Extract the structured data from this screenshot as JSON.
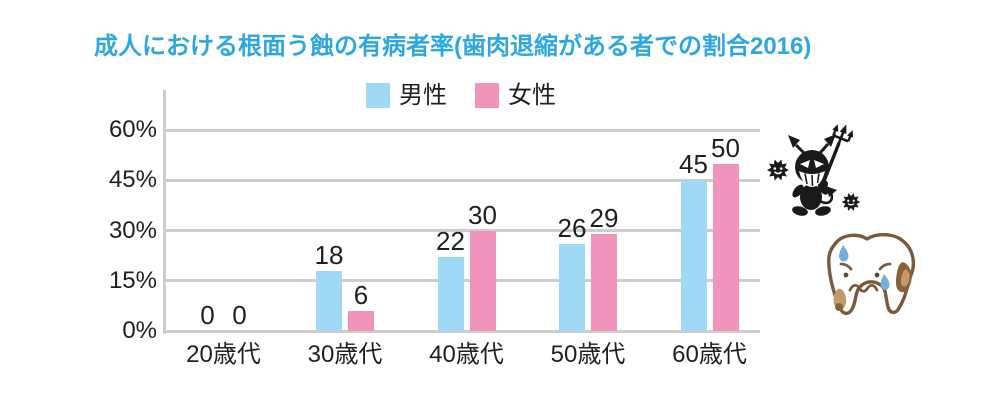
{
  "title": {
    "text": "成人における根面う蝕の有病者率(歯肉退縮がある者での割合2016)"
  },
  "colors": {
    "title": "#2EA7E1",
    "grid": "#CDCDCD",
    "text": "#1F1F1F",
    "male_bar": "#9FD9F6",
    "female_bar": "#F094BC",
    "mascot_black": "#1A1A1A",
    "tooth_outline": "#7B5A3C",
    "decay_tan": "#C49A6C",
    "decay_brown": "#8A6239",
    "tear_blue": "#74AEDF"
  },
  "chart_data": {
    "type": "bar",
    "title": "成人における根面う蝕の有病者率(歯肉退縮がある者での割合2016)",
    "categories": [
      "20歳代",
      "30歳代",
      "40歳代",
      "50歳代",
      "60歳代"
    ],
    "series": [
      {
        "name": "男性",
        "color": "#9FD9F6",
        "values": [
          0,
          18,
          22,
          26,
          45
        ]
      },
      {
        "name": "女性",
        "color": "#F094BC",
        "values": [
          0,
          6,
          30,
          29,
          50
        ]
      }
    ],
    "xlabel": "",
    "ylabel": "",
    "y_ticks": [
      "0%",
      "15%",
      "30%",
      "45%",
      "60%"
    ],
    "y_tick_values": [
      0,
      15,
      30,
      45,
      60
    ],
    "ylim": [
      0,
      60
    ],
    "grid": true,
    "legend_position": "top",
    "value_labels": true
  },
  "decorations": {
    "germ_devil": "cavity-germ-devil-with-trident",
    "worried_tooth": "worried-decayed-tooth"
  }
}
